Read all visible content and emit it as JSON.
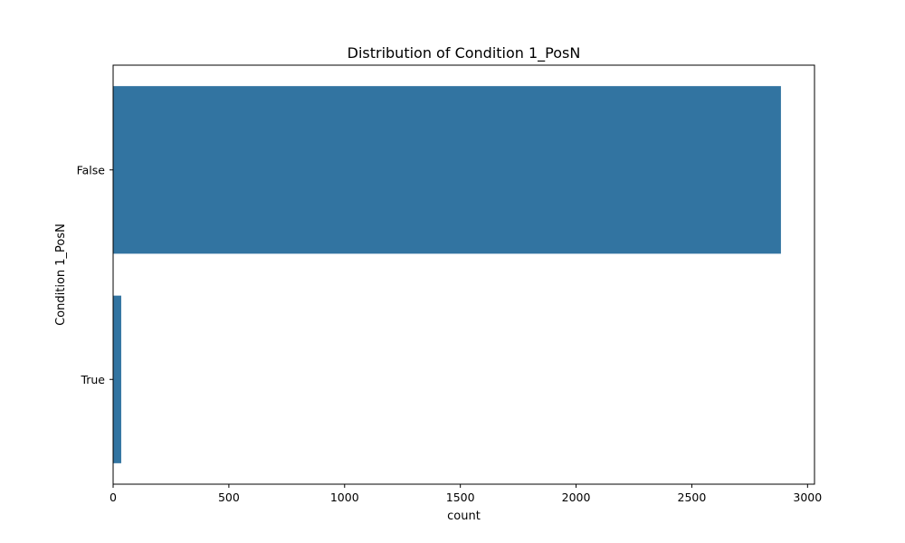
{
  "chart_data": {
    "type": "bar",
    "orientation": "horizontal",
    "title": "Distribution of Condition 1_PosN",
    "xlabel": "count",
    "ylabel": "Condition 1_PosN",
    "categories": [
      "False",
      "True"
    ],
    "values": [
      2885,
      35
    ],
    "xlim": [
      0,
      3030
    ],
    "xticks": [
      0,
      500,
      1000,
      1500,
      2000,
      2500,
      3000
    ],
    "grid": false,
    "legend": "none",
    "bar_color": "#3274a1"
  }
}
